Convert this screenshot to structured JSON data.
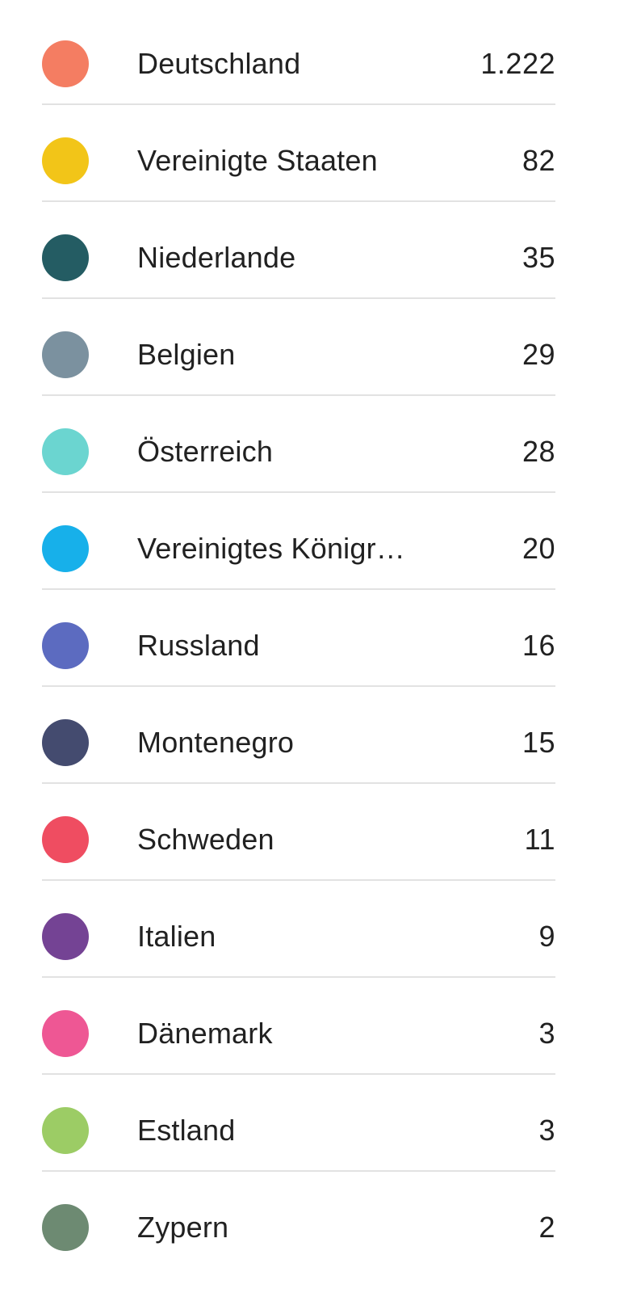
{
  "countries": [
    {
      "name": "Deutschland",
      "value": "1.222",
      "color": "#F47D62"
    },
    {
      "name": "Vereinigte Staaten",
      "value": "82",
      "color": "#F2C518"
    },
    {
      "name": "Niederlande",
      "value": "35",
      "color": "#245C63"
    },
    {
      "name": "Belgien",
      "value": "29",
      "color": "#7B919F"
    },
    {
      "name": "Österreich",
      "value": "28",
      "color": "#6BD5D0"
    },
    {
      "name": "Vereinigtes Königr…",
      "value": "20",
      "color": "#17B0EA"
    },
    {
      "name": "Russland",
      "value": "16",
      "color": "#5C6BC0"
    },
    {
      "name": "Montenegro",
      "value": "15",
      "color": "#444B6F"
    },
    {
      "name": "Schweden",
      "value": "11",
      "color": "#EF4D61"
    },
    {
      "name": "Italien",
      "value": "9",
      "color": "#744394"
    },
    {
      "name": "Dänemark",
      "value": "3",
      "color": "#EE5794"
    },
    {
      "name": "Estland",
      "value": "3",
      "color": "#9CCC65"
    },
    {
      "name": "Zypern",
      "value": "2",
      "color": "#6D8A72"
    }
  ]
}
